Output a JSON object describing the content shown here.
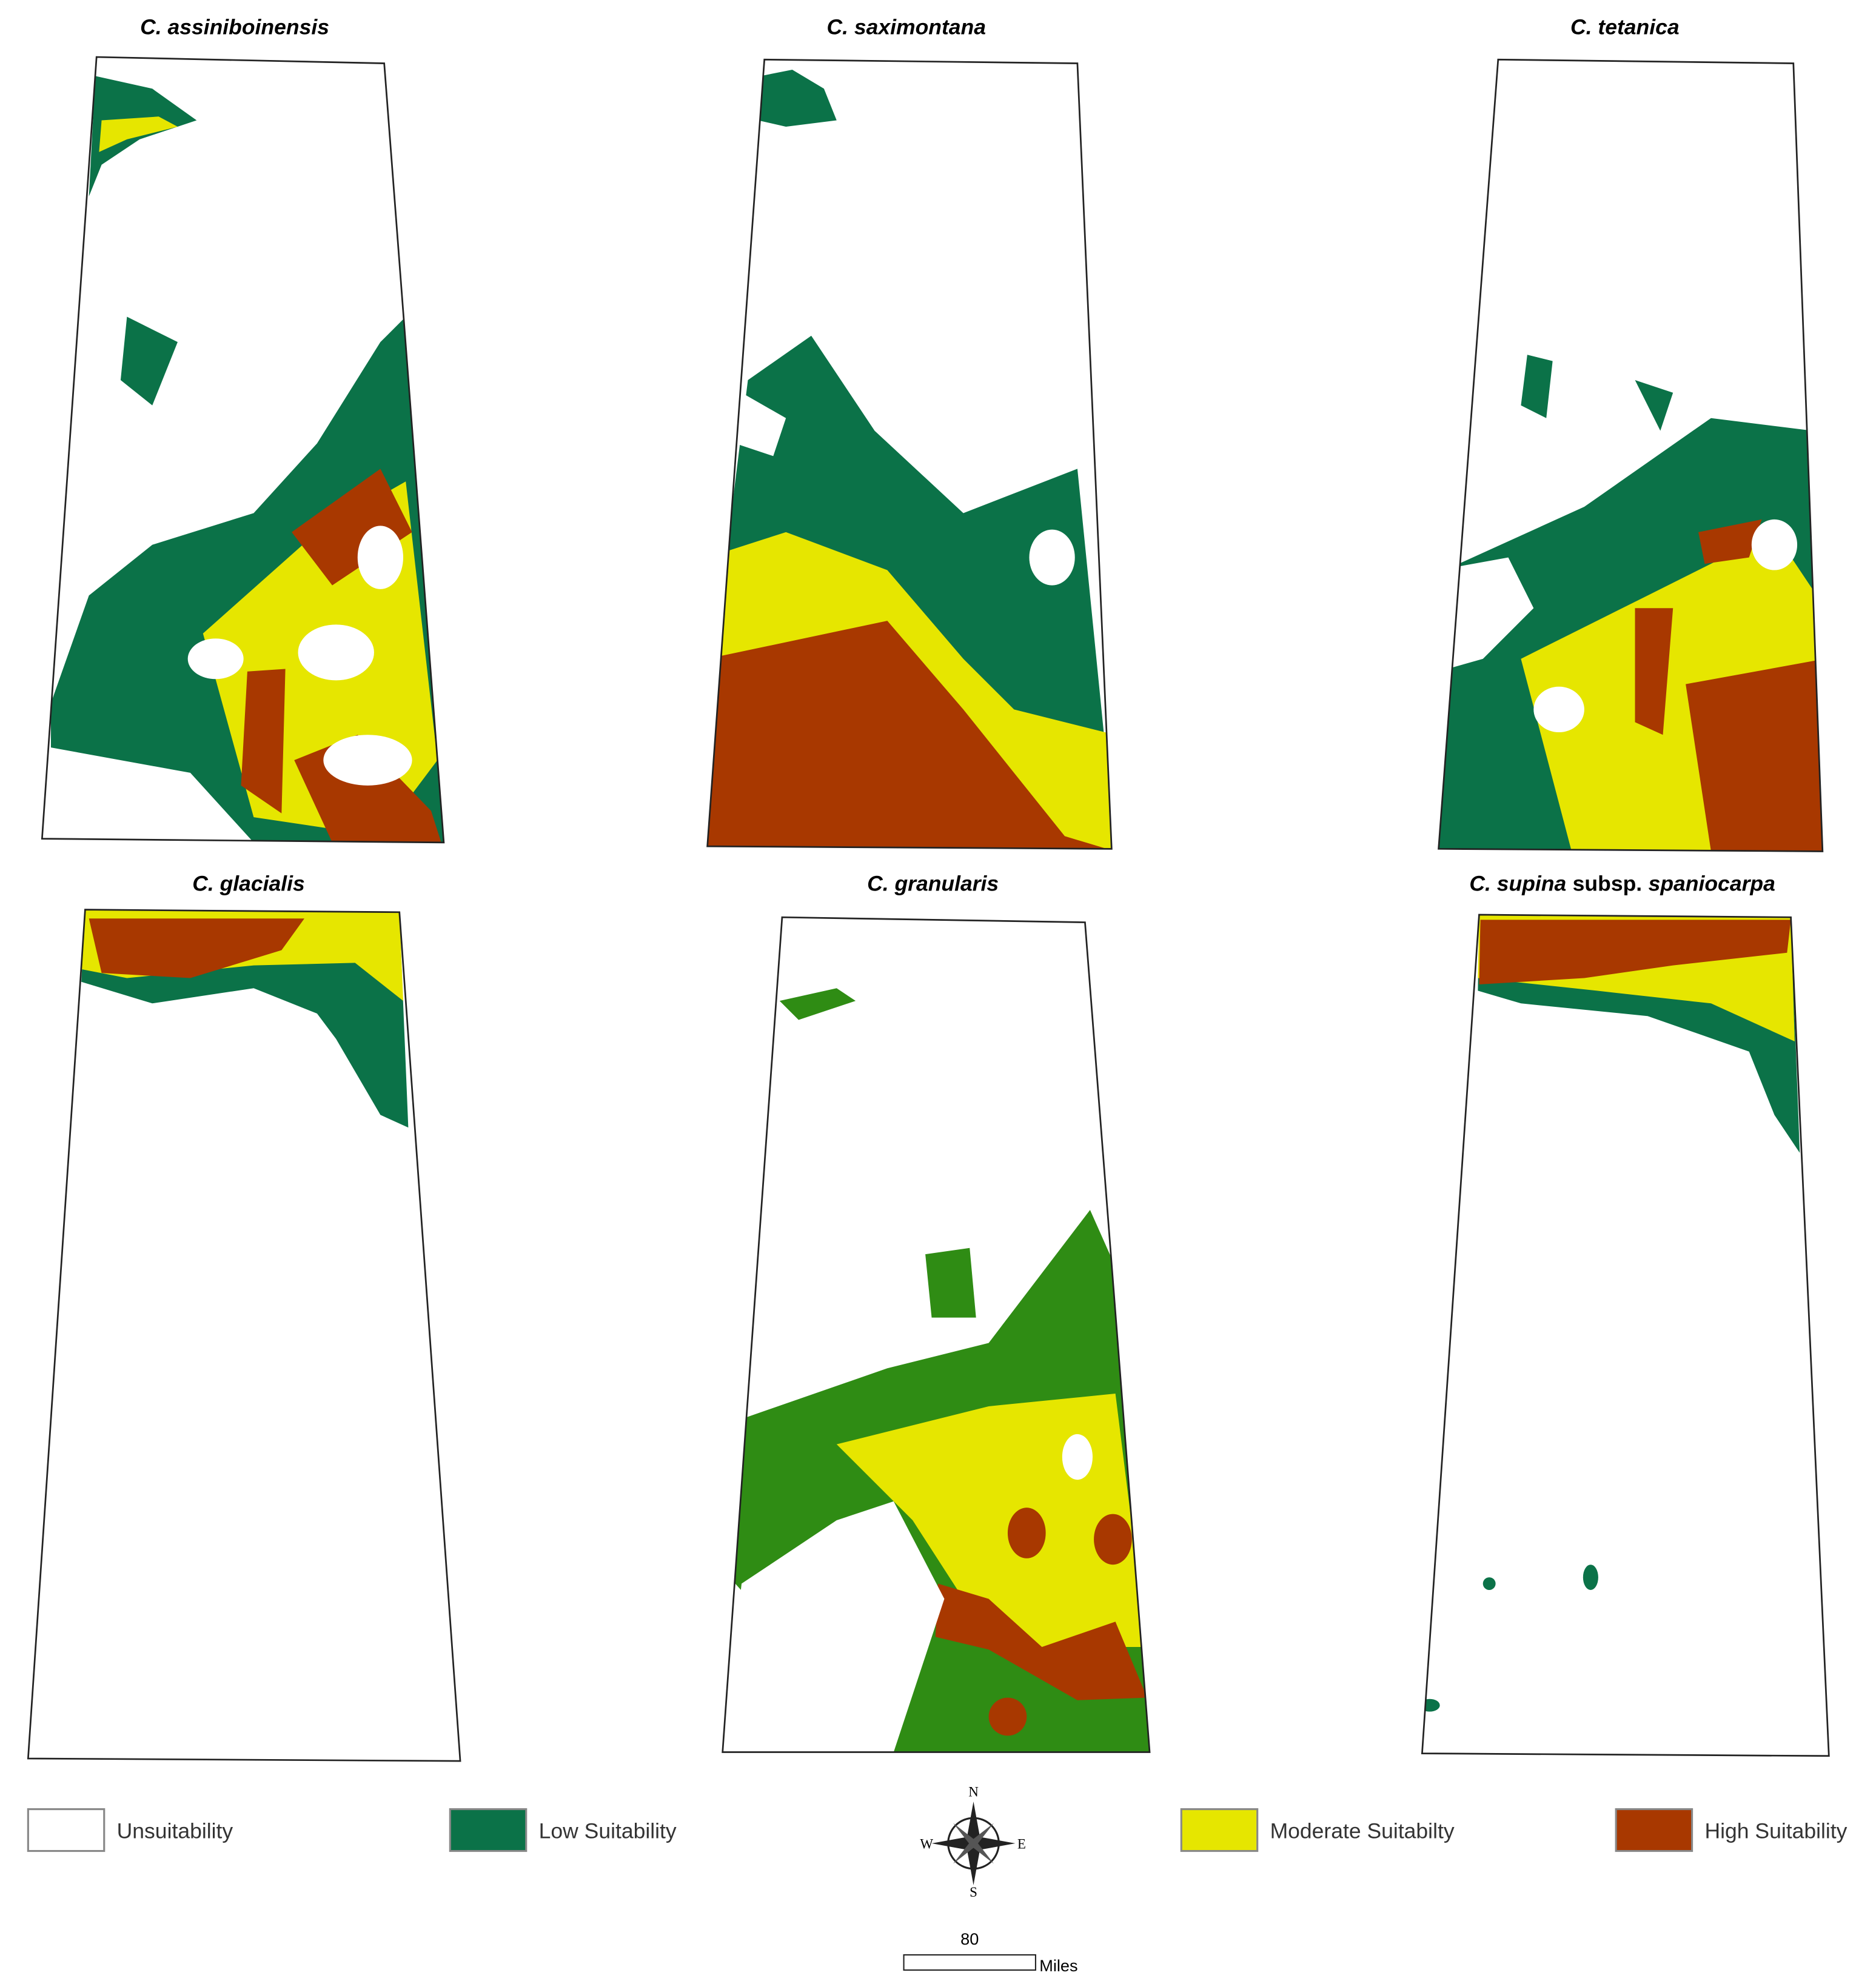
{
  "panels": [
    {
      "title": [
        {
          "text": "C. assiniboinensis",
          "italic": true
        }
      ]
    },
    {
      "title": [
        {
          "text": "C. saximontana",
          "italic": true
        }
      ]
    },
    {
      "title": [
        {
          "text": "C. tetanica",
          "italic": true
        }
      ]
    },
    {
      "title": [
        {
          "text": "C. glacialis",
          "italic": true
        }
      ]
    },
    {
      "title": [
        {
          "text": "C. granularis",
          "italic": true
        }
      ]
    },
    {
      "title": [
        {
          "text": "C. supina",
          "italic": true
        },
        {
          "text": "subsp.",
          "italic": false
        },
        {
          "text": "spaniocarpa",
          "italic": true
        }
      ]
    }
  ],
  "legend": [
    {
      "label": "Unsuitability",
      "color": "#ffffff"
    },
    {
      "label": "Low Suitability",
      "color": "#0b7248"
    },
    {
      "label": "Moderate Suitabilty",
      "color": "#e6e600"
    },
    {
      "label": "High Suitability",
      "color": "#a83800"
    }
  ],
  "compass": {
    "north": "N",
    "south": "S",
    "east": "E",
    "west": "W"
  },
  "scale_bar": {
    "label": "80",
    "unit": "Miles"
  }
}
